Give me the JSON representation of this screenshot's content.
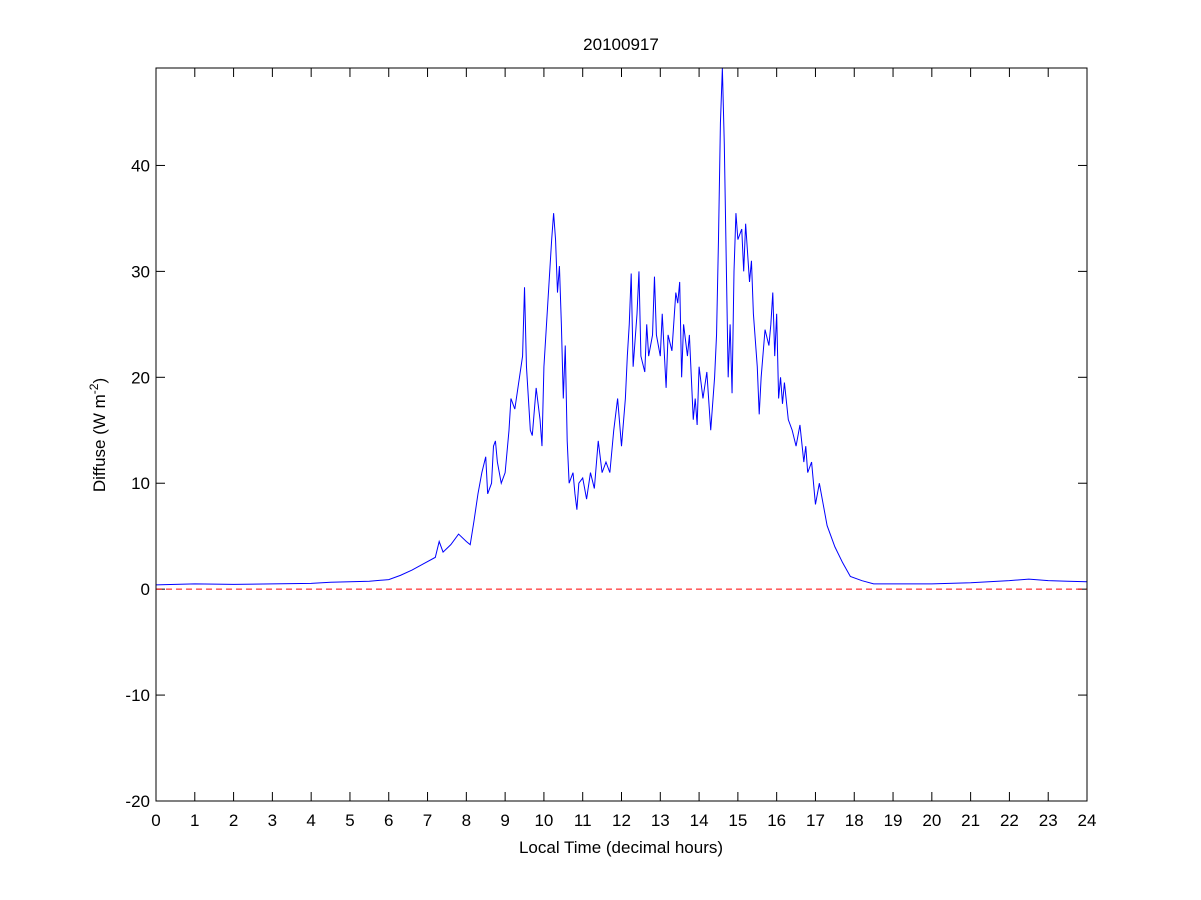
{
  "chart_data": {
    "type": "line",
    "title": "20100917",
    "xlabel": "Local Time (decimal hours)",
    "ylabel": {
      "text": "Diffuse (W m",
      "superscript": "-2",
      "suffix": ")"
    },
    "xlim": [
      0,
      24
    ],
    "ylim": [
      -20,
      49.2
    ],
    "xticks": [
      0,
      1,
      2,
      3,
      4,
      5,
      6,
      7,
      8,
      9,
      10,
      11,
      12,
      13,
      14,
      15,
      16,
      17,
      18,
      19,
      20,
      21,
      22,
      23,
      24
    ],
    "yticks": [
      -20,
      -10,
      0,
      10,
      20,
      30,
      40
    ],
    "reference_line": {
      "value": 0,
      "color": "#ff0000",
      "style": "dashed"
    },
    "series": [
      {
        "color": "#0000ff",
        "x": [
          0,
          1,
          2,
          3,
          4,
          4.5,
          5,
          5.5,
          6,
          6.3,
          6.6,
          6.9,
          7.2,
          7.3,
          7.4,
          7.6,
          7.8,
          8.0,
          8.1,
          8.2,
          8.3,
          8.4,
          8.5,
          8.55,
          8.65,
          8.7,
          8.75,
          8.8,
          8.9,
          9.0,
          9.1,
          9.15,
          9.25,
          9.35,
          9.45,
          9.5,
          9.55,
          9.65,
          9.7,
          9.8,
          9.9,
          9.95,
          10.0,
          10.1,
          10.2,
          10.25,
          10.3,
          10.35,
          10.4,
          10.45,
          10.5,
          10.55,
          10.6,
          10.65,
          10.75,
          10.8,
          10.85,
          10.9,
          11.0,
          11.1,
          11.2,
          11.3,
          11.4,
          11.5,
          11.6,
          11.7,
          11.8,
          11.9,
          12.0,
          12.1,
          12.15,
          12.2,
          12.25,
          12.3,
          12.4,
          12.45,
          12.5,
          12.6,
          12.65,
          12.7,
          12.8,
          12.85,
          12.9,
          13.0,
          13.05,
          13.15,
          13.2,
          13.3,
          13.4,
          13.45,
          13.5,
          13.55,
          13.6,
          13.7,
          13.75,
          13.85,
          13.9,
          13.95,
          14.0,
          14.1,
          14.2,
          14.3,
          14.4,
          14.45,
          14.5,
          14.55,
          14.6,
          14.65,
          14.7,
          14.75,
          14.8,
          14.85,
          14.9,
          14.95,
          15.0,
          15.1,
          15.15,
          15.2,
          15.3,
          15.35,
          15.4,
          15.5,
          15.55,
          15.6,
          15.7,
          15.8,
          15.85,
          15.9,
          15.95,
          16.0,
          16.05,
          16.1,
          16.15,
          16.2,
          16.3,
          16.4,
          16.5,
          16.6,
          16.7,
          16.75,
          16.8,
          16.9,
          17.0,
          17.1,
          17.2,
          17.3,
          17.5,
          17.7,
          17.9,
          18.2,
          18.5,
          19,
          20,
          21,
          22,
          22.5,
          23,
          23.5,
          24
        ],
        "values": [
          0.4,
          0.5,
          0.45,
          0.5,
          0.55,
          0.65,
          0.7,
          0.75,
          0.9,
          1.3,
          1.8,
          2.4,
          3.0,
          4.5,
          3.5,
          4.2,
          5.2,
          4.5,
          4.2,
          6.5,
          9,
          11,
          12.5,
          9,
          10,
          13.5,
          14,
          12,
          10,
          11,
          15,
          18,
          17,
          19.5,
          22,
          28.5,
          21,
          15,
          14.5,
          19,
          16,
          13.5,
          21,
          27,
          33,
          35.5,
          33,
          28,
          30.5,
          25,
          18,
          23,
          14,
          10,
          11,
          9,
          7.5,
          10,
          10.5,
          8.5,
          11,
          9.5,
          14,
          11,
          12,
          11,
          15,
          18,
          13.5,
          18,
          22,
          25,
          29.8,
          21,
          26,
          30,
          22,
          20.5,
          25,
          22,
          24,
          29.5,
          24,
          22,
          26,
          19,
          24,
          22.5,
          28,
          27,
          29,
          20,
          25,
          22,
          24,
          16,
          18,
          15.5,
          21,
          18,
          20.5,
          15,
          20,
          24,
          33,
          44,
          49.2,
          42,
          31,
          20,
          25,
          18.5,
          30,
          35.5,
          33,
          34,
          30,
          34.5,
          29,
          31,
          26,
          21,
          16.5,
          20,
          24.5,
          23,
          25,
          28,
          22,
          26,
          18,
          20,
          17.5,
          19.5,
          16,
          15,
          13.5,
          15.5,
          12,
          13.5,
          11,
          12,
          8,
          10,
          8,
          6,
          4,
          2.5,
          1.2,
          0.8,
          0.5,
          0.5,
          0.5,
          0.6,
          0.8,
          0.95,
          0.8,
          0.75,
          0.7
        ]
      }
    ]
  }
}
